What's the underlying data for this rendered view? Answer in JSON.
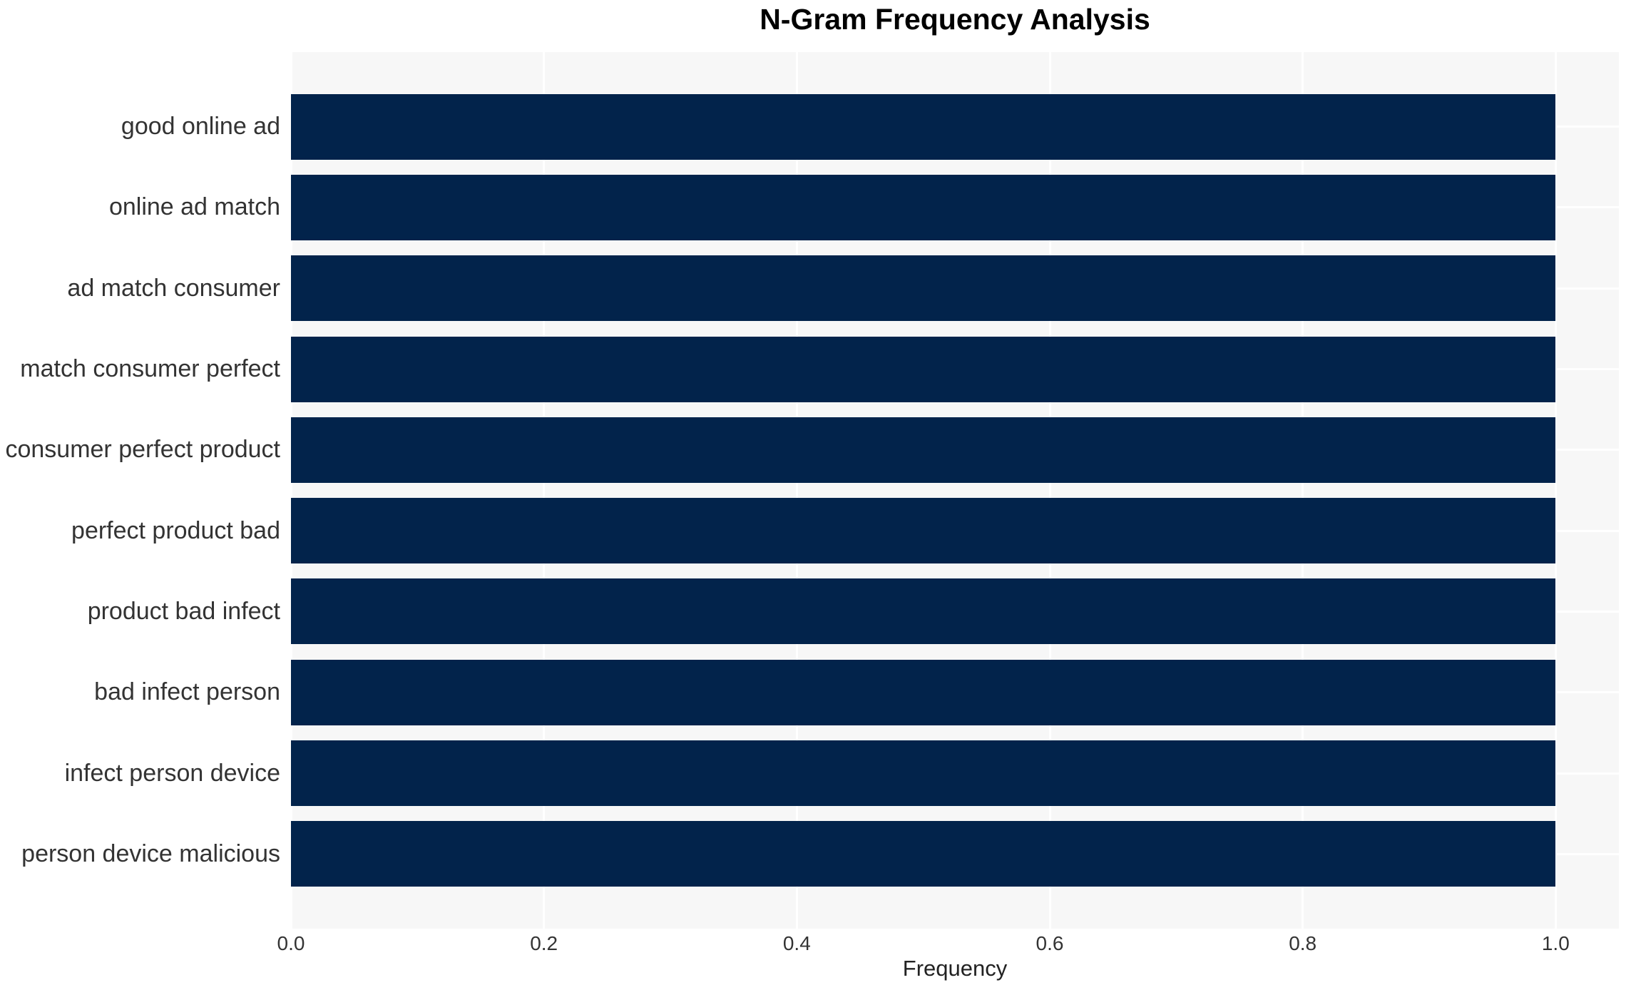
{
  "chart_data": {
    "type": "bar",
    "orientation": "horizontal",
    "title": "N-Gram Frequency Analysis",
    "xlabel": "Frequency",
    "ylabel": "",
    "categories": [
      "good online ad",
      "online ad match",
      "ad match consumer",
      "match consumer perfect",
      "consumer perfect product",
      "perfect product bad",
      "product bad infect",
      "bad infect person",
      "infect person device",
      "person device malicious"
    ],
    "values": [
      1.0,
      1.0,
      1.0,
      1.0,
      1.0,
      1.0,
      1.0,
      1.0,
      1.0,
      1.0
    ],
    "xticks": [
      0.0,
      0.2,
      0.4,
      0.6,
      0.8,
      1.0
    ],
    "xlim": [
      0.0,
      1.05
    ],
    "grid": true,
    "legend": false,
    "colors": {
      "bar": "#02234b",
      "plot_background": "#f7f7f7",
      "gridline": "#ffffff",
      "title_text": "#000000",
      "tick_text": "#333333",
      "axis_label_text": "#222222"
    }
  }
}
